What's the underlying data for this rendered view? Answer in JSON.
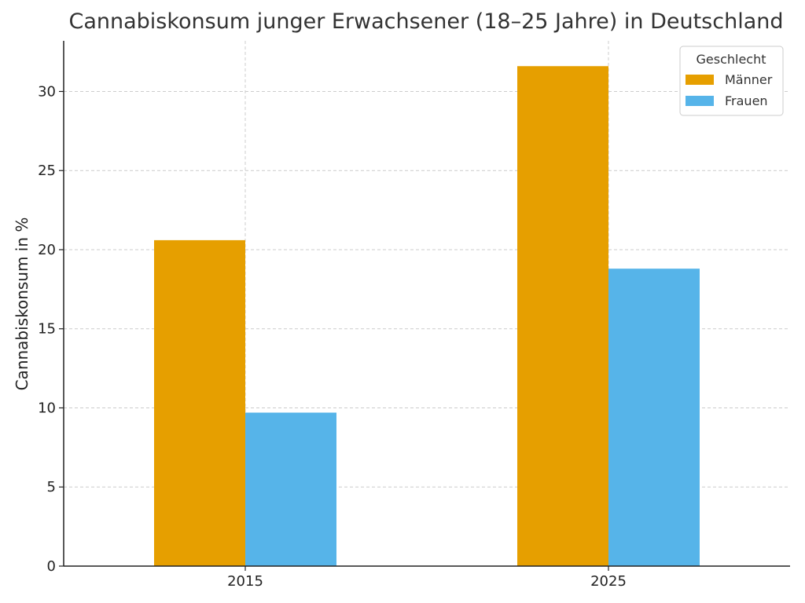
{
  "chart_data": {
    "type": "bar",
    "title": "Cannabiskonsum junger Erwachsener (18–25 Jahre) in Deutschland",
    "xlabel": "",
    "ylabel": "Cannabiskonsum in %",
    "categories": [
      "2015",
      "2025"
    ],
    "series": [
      {
        "name": "Männer",
        "values": [
          20.6,
          31.6
        ],
        "color": "#E69F00"
      },
      {
        "name": "Frauen",
        "values": [
          9.7,
          18.8
        ],
        "color": "#56B4E9"
      }
    ],
    "ylim": [
      0,
      33.2
    ],
    "yticks": [
      0,
      5,
      10,
      15,
      20,
      25,
      30
    ],
    "grid": true,
    "legend": {
      "title": "Geschlecht",
      "placement": "top-right"
    }
  }
}
